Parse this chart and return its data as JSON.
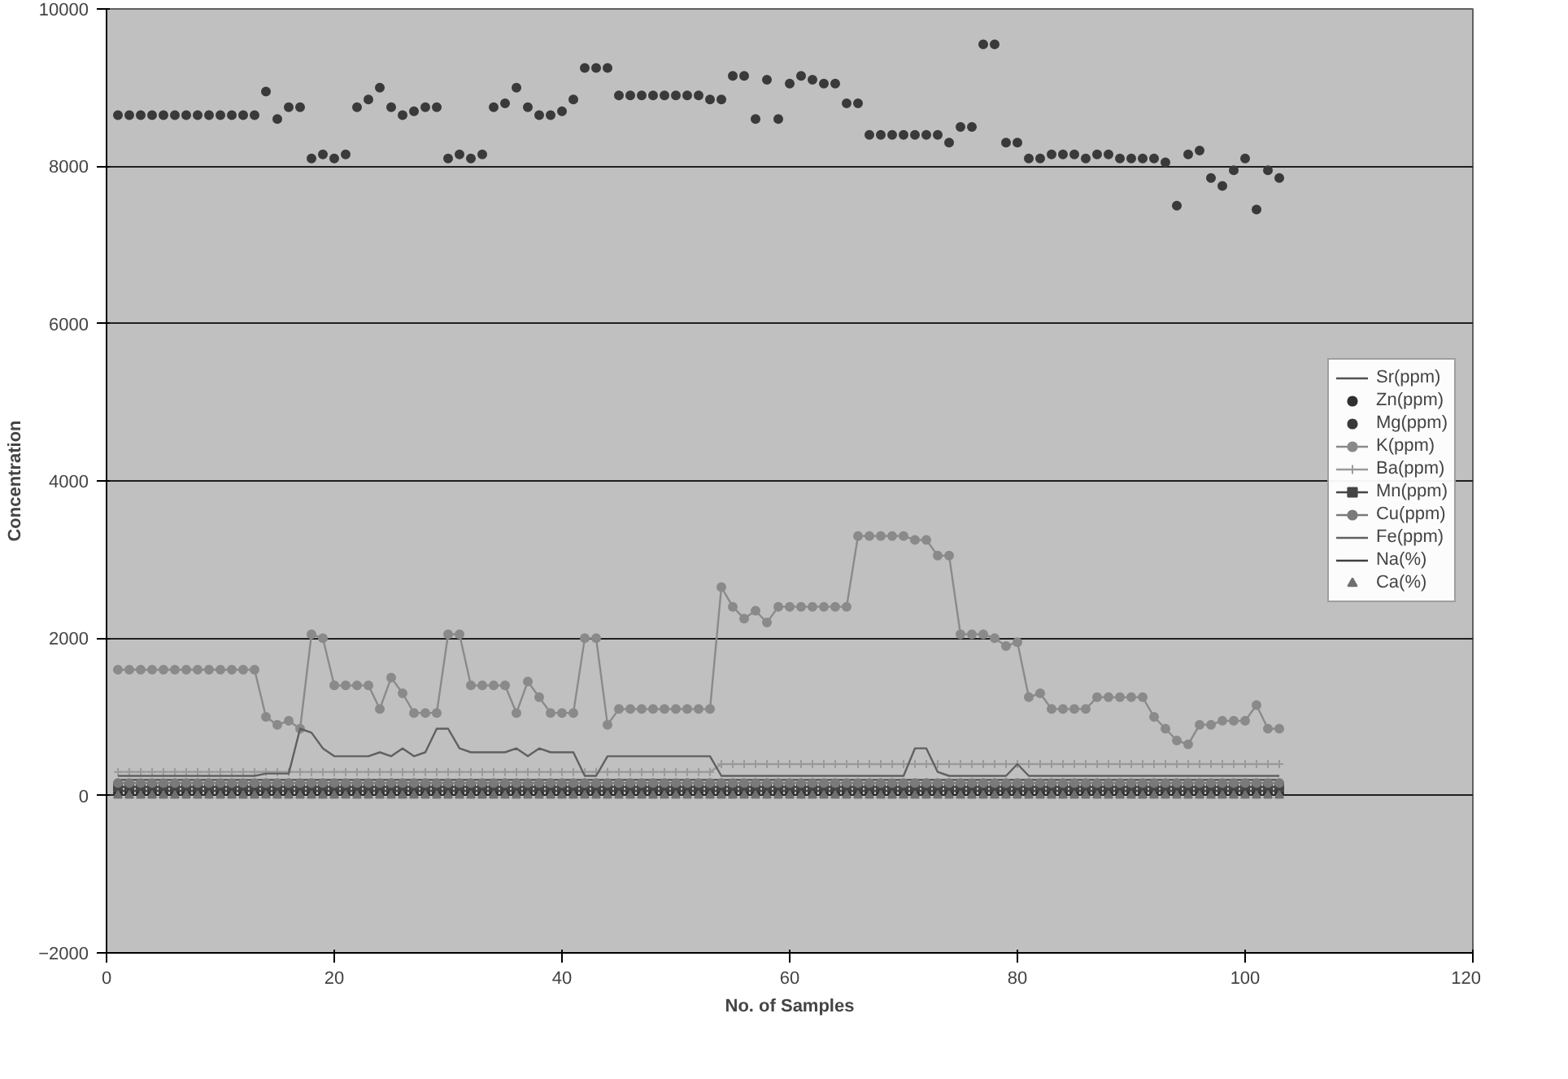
{
  "chart_data": {
    "type": "line",
    "xlabel": "No. of Samples",
    "ylabel": "Concentration",
    "xlim": [
      0,
      120
    ],
    "xticks": [
      0,
      20,
      40,
      60,
      80,
      100,
      120
    ],
    "ylim": [
      -2000,
      10000
    ],
    "yticks": [
      -2000,
      0,
      2000,
      4000,
      6000,
      8000,
      10000
    ],
    "grid": "y",
    "legend": "right",
    "x": [
      1,
      2,
      3,
      4,
      5,
      6,
      7,
      8,
      9,
      10,
      11,
      12,
      13,
      14,
      15,
      16,
      17,
      18,
      19,
      20,
      21,
      22,
      23,
      24,
      25,
      26,
      27,
      28,
      29,
      30,
      31,
      32,
      33,
      34,
      35,
      36,
      37,
      38,
      39,
      40,
      41,
      42,
      43,
      44,
      45,
      46,
      47,
      48,
      49,
      50,
      51,
      52,
      53,
      54,
      55,
      56,
      57,
      58,
      59,
      60,
      61,
      62,
      63,
      64,
      65,
      66,
      67,
      68,
      69,
      70,
      71,
      72,
      73,
      74,
      75,
      76,
      77,
      78,
      79,
      80,
      81,
      82,
      83,
      84,
      85,
      86,
      87,
      88,
      89,
      90,
      91,
      92,
      93,
      94,
      95,
      96,
      97,
      98,
      99,
      100,
      101,
      102,
      103
    ],
    "series": [
      {
        "name": "Sr(ppm)",
        "color": "#505050",
        "values": [
          200,
          200,
          200,
          200,
          200,
          200,
          200,
          200,
          200,
          200,
          200,
          200,
          200,
          200,
          200,
          200,
          200,
          200,
          200,
          200,
          200,
          200,
          200,
          200,
          200,
          200,
          200,
          200,
          200,
          200,
          200,
          200,
          200,
          200,
          200,
          200,
          200,
          200,
          200,
          200,
          200,
          200,
          200,
          200,
          200,
          200,
          200,
          200,
          200,
          200,
          200,
          200,
          200,
          200,
          200,
          200,
          200,
          200,
          200,
          200,
          200,
          200,
          200,
          200,
          200,
          200,
          200,
          200,
          200,
          200,
          200,
          200,
          200,
          200,
          200,
          200,
          200,
          200,
          200,
          200,
          200,
          200,
          200,
          200,
          200,
          200,
          200,
          200,
          200,
          200,
          200,
          200,
          200,
          200,
          200,
          200,
          200,
          200,
          200,
          200,
          200,
          200,
          200
        ]
      },
      {
        "name": "Zn(ppm)",
        "type": "scatter",
        "marker": "circle",
        "color": "#303030",
        "values": [
          30,
          30,
          30,
          30,
          30,
          30,
          30,
          30,
          30,
          30,
          30,
          30,
          30,
          30,
          30,
          30,
          30,
          30,
          30,
          30,
          30,
          30,
          30,
          30,
          30,
          30,
          30,
          30,
          30,
          30,
          30,
          30,
          30,
          30,
          30,
          30,
          30,
          30,
          30,
          30,
          30,
          30,
          30,
          30,
          30,
          30,
          30,
          30,
          30,
          30,
          30,
          30,
          30,
          30,
          30,
          30,
          30,
          30,
          30,
          30,
          30,
          30,
          30,
          30,
          30,
          30,
          30,
          30,
          30,
          30,
          30,
          30,
          30,
          30,
          30,
          30,
          30,
          30,
          30,
          30,
          30,
          30,
          30,
          30,
          30,
          30,
          30,
          30,
          30,
          30,
          30,
          30,
          30,
          30,
          30,
          30,
          30,
          30,
          30,
          30,
          30,
          30,
          30
        ]
      },
      {
        "name": "Mg(ppm)",
        "type": "scatter",
        "marker": "circle",
        "color": "#3a3a3a",
        "values": [
          8650,
          8650,
          8650,
          8650,
          8650,
          8650,
          8650,
          8650,
          8650,
          8650,
          8650,
          8650,
          8650,
          8950,
          8600,
          8750,
          8750,
          8100,
          8150,
          8100,
          8150,
          8750,
          8850,
          9000,
          8750,
          8650,
          8700,
          8750,
          8750,
          8100,
          8150,
          8100,
          8150,
          8750,
          8800,
          9000,
          8750,
          8650,
          8650,
          8700,
          8850,
          9250,
          9250,
          9250,
          8900,
          8900,
          8900,
          8900,
          8900,
          8900,
          8900,
          8900,
          8850,
          8850,
          9150,
          9150,
          8600,
          9100,
          8600,
          9050,
          9150,
          9100,
          9050,
          9050,
          8800,
          8800,
          8400,
          8400,
          8400,
          8400,
          8400,
          8400,
          8400,
          8300,
          8500,
          8500,
          9550,
          9550,
          8300,
          8300,
          8100,
          8100,
          8150,
          8150,
          8150,
          8100,
          8150,
          8150,
          8100,
          8100,
          8100,
          8100,
          8050,
          7500,
          8150,
          8200,
          7850,
          7750,
          7950,
          8100,
          7450,
          7950,
          7850
        ]
      },
      {
        "name": "K(ppm)",
        "marker": "circle",
        "color": "#8a8a8a",
        "values": [
          1600,
          1600,
          1600,
          1600,
          1600,
          1600,
          1600,
          1600,
          1600,
          1600,
          1600,
          1600,
          1600,
          1000,
          900,
          950,
          850,
          2050,
          2000,
          1400,
          1400,
          1400,
          1400,
          1100,
          1500,
          1300,
          1050,
          1050,
          1050,
          2050,
          2050,
          1400,
          1400,
          1400,
          1400,
          1050,
          1450,
          1250,
          1050,
          1050,
          1050,
          2000,
          2000,
          900,
          1100,
          1100,
          1100,
          1100,
          1100,
          1100,
          1100,
          1100,
          1100,
          2650,
          2400,
          2250,
          2350,
          2200,
          2400,
          2400,
          2400,
          2400,
          2400,
          2400,
          2400,
          3300,
          3300,
          3300,
          3300,
          3300,
          3250,
          3250,
          3050,
          3050,
          2050,
          2050,
          2050,
          2000,
          1900,
          1950,
          1250,
          1300,
          1100,
          1100,
          1100,
          1100,
          1250,
          1250,
          1250,
          1250,
          1250,
          1000,
          850,
          700,
          650,
          900,
          900,
          950,
          950,
          950,
          1150,
          850,
          850
        ]
      },
      {
        "name": "Ba(ppm)",
        "marker": "cross",
        "color": "#9a9a9a",
        "values": [
          300,
          300,
          300,
          300,
          300,
          300,
          300,
          300,
          300,
          300,
          300,
          300,
          300,
          300,
          300,
          300,
          300,
          300,
          300,
          300,
          300,
          300,
          300,
          300,
          300,
          300,
          300,
          300,
          300,
          300,
          300,
          300,
          300,
          300,
          300,
          300,
          300,
          300,
          300,
          300,
          300,
          300,
          300,
          300,
          300,
          300,
          300,
          300,
          300,
          300,
          300,
          300,
          300,
          400,
          400,
          400,
          400,
          400,
          400,
          400,
          400,
          400,
          400,
          400,
          400,
          400,
          400,
          400,
          400,
          400,
          400,
          400,
          400,
          400,
          400,
          400,
          400,
          400,
          400,
          400,
          400,
          400,
          400,
          400,
          400,
          400,
          400,
          400,
          400,
          400,
          400,
          400,
          400,
          400,
          400,
          400,
          400,
          400,
          400,
          400,
          400,
          400,
          400
        ]
      },
      {
        "name": "Mn(ppm)",
        "marker": "square",
        "color": "#454545",
        "values": [
          110,
          110,
          110,
          110,
          110,
          110,
          110,
          110,
          110,
          110,
          110,
          110,
          110,
          110,
          110,
          110,
          110,
          110,
          110,
          110,
          110,
          110,
          110,
          110,
          110,
          110,
          110,
          110,
          110,
          110,
          110,
          110,
          110,
          110,
          110,
          110,
          110,
          110,
          110,
          110,
          110,
          110,
          110,
          110,
          110,
          110,
          110,
          110,
          110,
          110,
          110,
          110,
          110,
          110,
          110,
          110,
          110,
          110,
          110,
          110,
          110,
          110,
          110,
          110,
          110,
          110,
          110,
          110,
          110,
          110,
          110,
          110,
          110,
          110,
          110,
          110,
          110,
          110,
          110,
          110,
          110,
          110,
          110,
          110,
          110,
          110,
          110,
          110,
          110,
          110,
          110,
          110,
          110,
          110,
          110,
          110,
          110,
          110,
          110,
          110,
          110,
          110,
          110
        ]
      },
      {
        "name": "Cu(ppm)",
        "marker": "circle",
        "color": "#7a7a7a",
        "values": [
          160,
          160,
          160,
          160,
          160,
          160,
          160,
          160,
          160,
          160,
          160,
          160,
          160,
          160,
          160,
          160,
          160,
          160,
          160,
          160,
          160,
          160,
          160,
          160,
          160,
          160,
          160,
          160,
          160,
          160,
          160,
          160,
          160,
          160,
          160,
          160,
          160,
          160,
          160,
          160,
          160,
          160,
          160,
          160,
          160,
          160,
          160,
          160,
          160,
          160,
          160,
          160,
          160,
          160,
          160,
          160,
          160,
          160,
          160,
          160,
          160,
          160,
          160,
          160,
          160,
          160,
          160,
          160,
          160,
          160,
          160,
          160,
          160,
          160,
          160,
          160,
          160,
          160,
          160,
          160,
          160,
          160,
          160,
          160,
          160,
          160,
          160,
          160,
          160,
          160,
          160,
          160,
          160,
          160,
          160,
          160,
          160,
          160,
          160,
          160,
          160,
          160,
          160
        ]
      },
      {
        "name": "Fe(ppm)",
        "color": "#606060",
        "values": [
          250,
          250,
          250,
          250,
          250,
          250,
          250,
          250,
          250,
          250,
          250,
          250,
          250,
          280,
          280,
          280,
          850,
          800,
          600,
          500,
          500,
          500,
          500,
          550,
          500,
          600,
          500,
          550,
          850,
          850,
          600,
          550,
          550,
          550,
          550,
          600,
          500,
          600,
          550,
          550,
          550,
          250,
          250,
          500,
          500,
          500,
          500,
          500,
          500,
          500,
          500,
          500,
          500,
          250,
          250,
          250,
          250,
          250,
          250,
          250,
          250,
          250,
          250,
          250,
          250,
          250,
          250,
          250,
          250,
          250,
          600,
          600,
          300,
          250,
          250,
          250,
          250,
          250,
          250,
          400,
          250,
          250,
          250,
          250,
          250,
          250,
          250,
          250,
          250,
          250,
          250,
          250,
          250,
          250,
          250,
          250,
          250,
          250,
          250,
          250,
          250,
          250,
          250
        ]
      },
      {
        "name": "Na(%)",
        "color": "#404040",
        "values": [
          60,
          60,
          60,
          60,
          60,
          60,
          60,
          60,
          60,
          60,
          60,
          60,
          60,
          60,
          60,
          60,
          60,
          60,
          60,
          60,
          60,
          60,
          60,
          60,
          60,
          60,
          60,
          60,
          60,
          60,
          60,
          60,
          60,
          60,
          60,
          60,
          60,
          60,
          60,
          60,
          60,
          60,
          60,
          60,
          60,
          60,
          60,
          60,
          60,
          60,
          60,
          60,
          60,
          60,
          60,
          60,
          60,
          60,
          60,
          60,
          60,
          60,
          60,
          60,
          60,
          60,
          60,
          60,
          60,
          60,
          60,
          60,
          60,
          60,
          60,
          60,
          60,
          60,
          60,
          60,
          60,
          60,
          60,
          60,
          60,
          60,
          60,
          60,
          60,
          60,
          60,
          60,
          60,
          60,
          60,
          60,
          60,
          60,
          60,
          60,
          60,
          60,
          60
        ]
      },
      {
        "name": "Ca(%)",
        "type": "scatter",
        "marker": "triangle",
        "color": "#707070",
        "values": [
          0,
          0,
          0,
          0,
          0,
          0,
          0,
          0,
          0,
          0,
          0,
          0,
          0,
          0,
          0,
          0,
          0,
          0,
          0,
          0,
          0,
          0,
          0,
          0,
          0,
          0,
          0,
          0,
          0,
          0,
          0,
          0,
          0,
          0,
          0,
          0,
          0,
          0,
          0,
          0,
          0,
          0,
          0,
          0,
          0,
          0,
          0,
          0,
          0,
          0,
          0,
          0,
          0,
          0,
          0,
          0,
          0,
          0,
          0,
          0,
          0,
          0,
          0,
          0,
          0,
          0,
          0,
          0,
          0,
          0,
          0,
          0,
          0,
          0,
          0,
          0,
          0,
          0,
          0,
          0,
          0,
          0,
          0,
          0,
          0,
          0,
          0,
          0,
          0,
          0,
          0,
          0,
          0,
          0,
          0,
          0,
          0,
          0,
          0,
          0,
          0,
          0,
          0
        ]
      }
    ]
  }
}
